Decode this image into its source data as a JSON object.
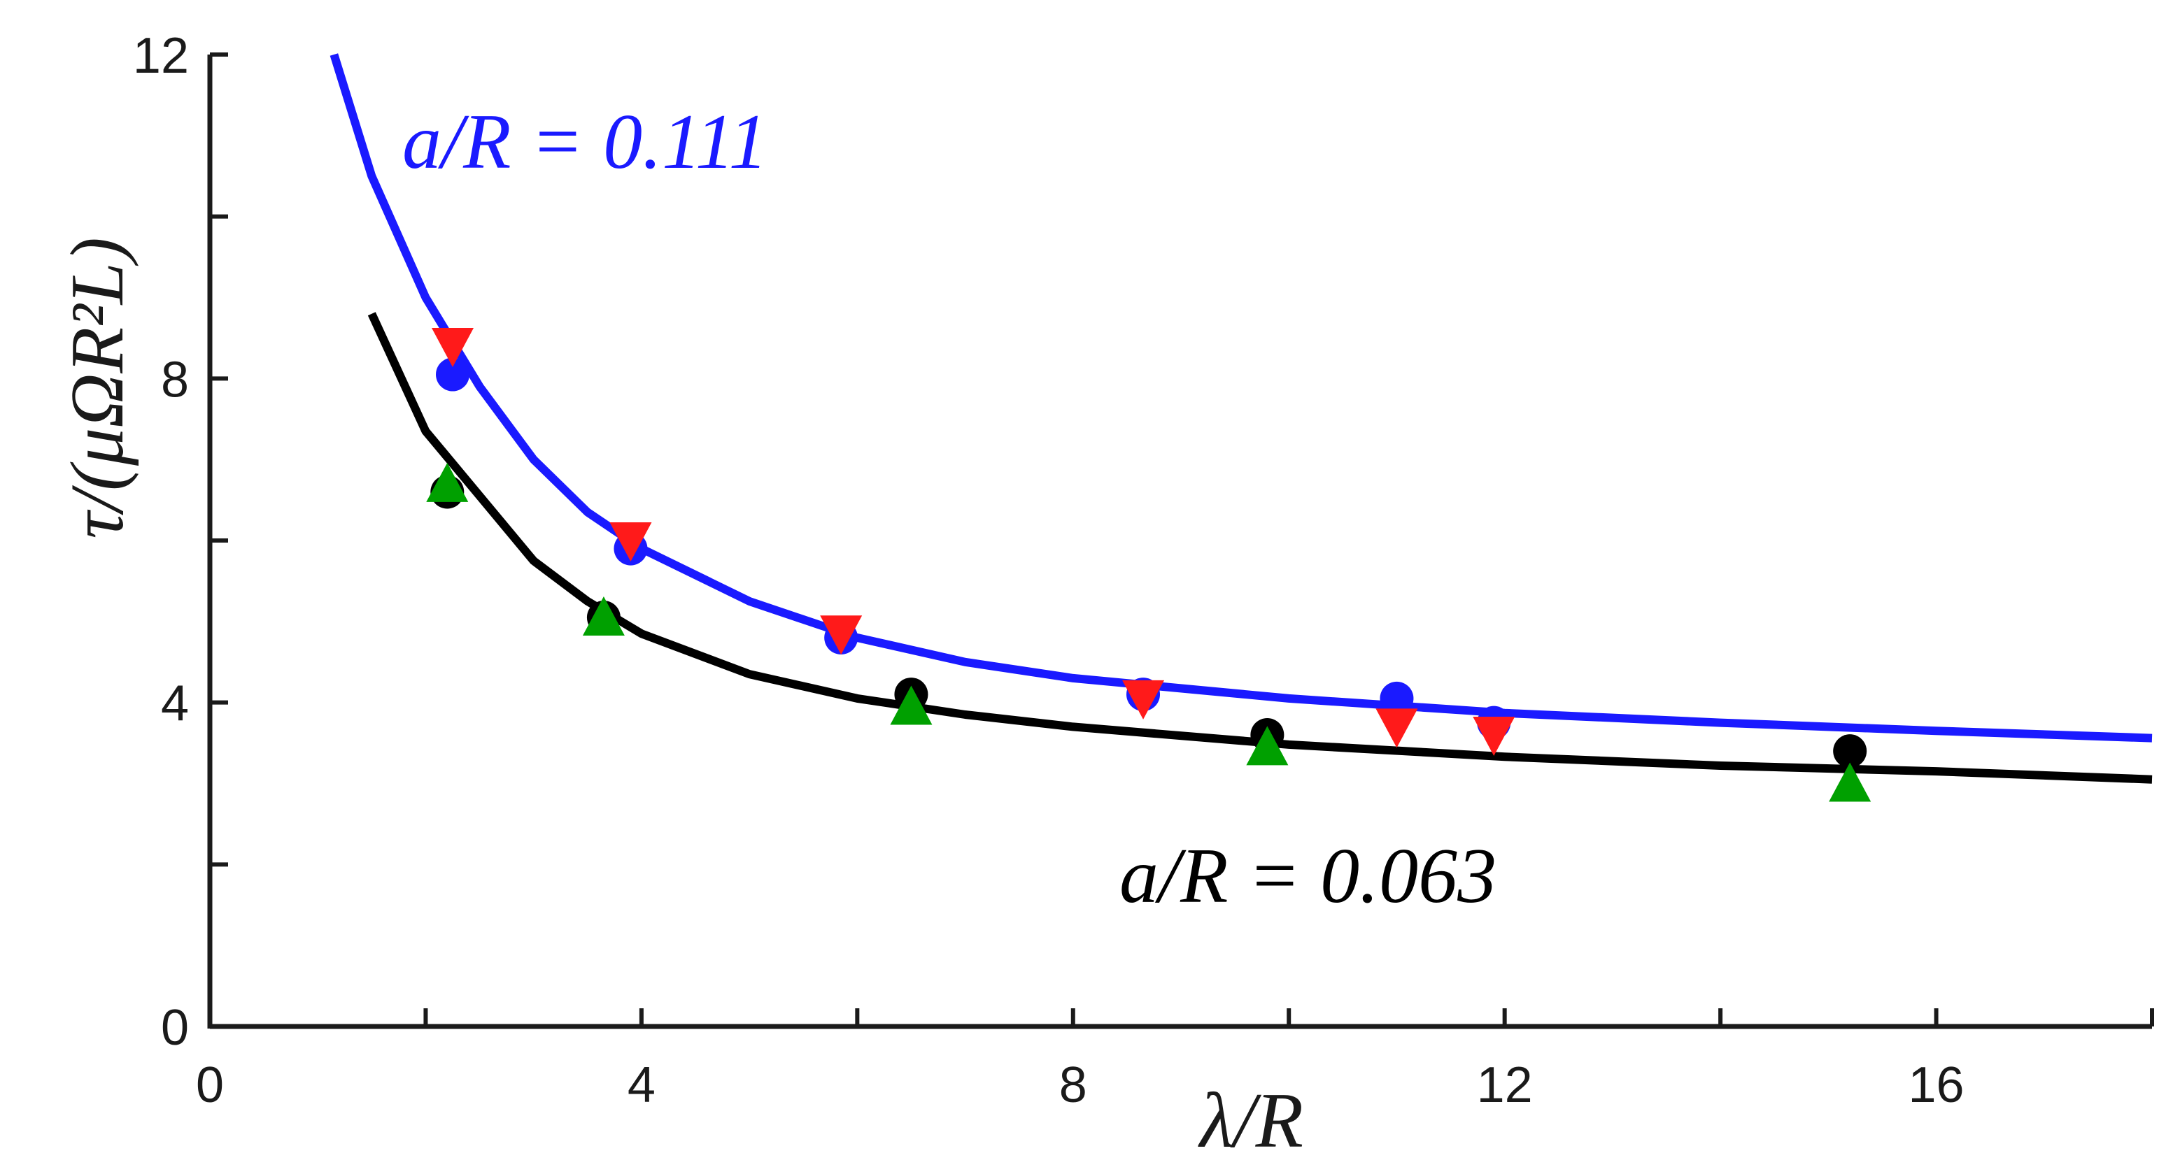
{
  "chart_data": {
    "type": "line",
    "xlabel": "λ/R",
    "ylabel": "τ/(μΩR²L)",
    "xlim": [
      0,
      18
    ],
    "ylim": [
      0,
      12
    ],
    "x_ticks": [
      0,
      4,
      8,
      12,
      16
    ],
    "y_ticks": [
      0,
      4,
      8,
      12
    ],
    "x_tick_labels": [
      "0",
      "4",
      "8",
      "12",
      "16"
    ],
    "y_tick_labels": [
      "0",
      "4",
      "8",
      "12"
    ],
    "grid": false,
    "annotations": [
      {
        "text": "a/R = 0.111",
        "color": "#1a1aff"
      },
      {
        "text": "a/R = 0.063",
        "color": "#000000"
      }
    ],
    "series": [
      {
        "name": "a/R = 0.111 theory",
        "kind": "line",
        "color": "#1a1aff",
        "x": [
          1.15,
          1.5,
          2.0,
          2.5,
          3.0,
          3.5,
          4.0,
          5.0,
          6.0,
          7.0,
          8.0,
          10.0,
          12.0,
          14.0,
          16.0,
          18.0
        ],
        "y": [
          12.0,
          10.5,
          9.0,
          7.9,
          7.0,
          6.35,
          5.9,
          5.25,
          4.8,
          4.5,
          4.3,
          4.05,
          3.87,
          3.75,
          3.65,
          3.56
        ]
      },
      {
        "name": "a/R = 0.063 theory",
        "kind": "line",
        "color": "#000000",
        "x": [
          1.5,
          2.0,
          2.5,
          3.0,
          3.5,
          4.0,
          5.0,
          6.0,
          7.0,
          8.0,
          10.0,
          12.0,
          14.0,
          16.0,
          18.0
        ],
        "y": [
          8.8,
          7.35,
          6.55,
          5.75,
          5.25,
          4.85,
          4.35,
          4.05,
          3.85,
          3.7,
          3.48,
          3.33,
          3.22,
          3.15,
          3.05
        ]
      },
      {
        "name": "blue circles",
        "kind": "marker",
        "marker": "circle",
        "color": "#1a1aff",
        "x": [
          2.25,
          3.9,
          5.85,
          8.65,
          11.0,
          11.9
        ],
        "y": [
          8.05,
          5.9,
          4.8,
          4.1,
          4.05,
          3.75
        ]
      },
      {
        "name": "red triangles",
        "kind": "marker",
        "marker": "triangle-down",
        "color": "#ff1a1a",
        "x": [
          2.25,
          3.9,
          5.85,
          8.65,
          11.0,
          11.9
        ],
        "y": [
          8.4,
          6.0,
          4.85,
          4.05,
          3.7,
          3.6
        ]
      },
      {
        "name": "black circles",
        "kind": "marker",
        "marker": "circle",
        "color": "#000000",
        "x": [
          2.2,
          3.65,
          6.5,
          9.8,
          15.2
        ],
        "y": [
          6.6,
          5.05,
          4.1,
          3.6,
          3.4
        ]
      },
      {
        "name": "green triangles",
        "kind": "marker",
        "marker": "triangle-up",
        "color": "#00a000",
        "x": [
          2.2,
          3.65,
          6.5,
          9.8,
          15.2
        ],
        "y": [
          6.7,
          5.05,
          3.95,
          3.45,
          3.0
        ]
      }
    ]
  }
}
